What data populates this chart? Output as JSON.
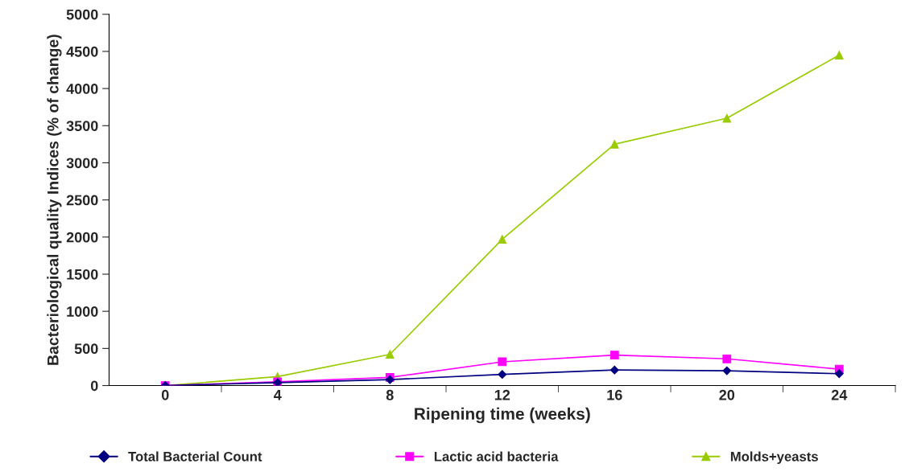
{
  "chart_data": {
    "type": "line",
    "xlabel": "Ripening time (weeks)",
    "ylabel": "Bacteriological quality Indices (% of change)",
    "categories": [
      "0",
      "4",
      "8",
      "12",
      "16",
      "20",
      "24"
    ],
    "series": [
      {
        "name": "Total Bacterial Count",
        "color": "#000080",
        "marker": "diamond",
        "values": [
          0,
          40,
          80,
          150,
          210,
          200,
          160
        ]
      },
      {
        "name": "Lactic acid bacteria",
        "color": "#ff00ff",
        "marker": "square",
        "values": [
          0,
          50,
          110,
          320,
          410,
          360,
          220
        ]
      },
      {
        "name": "Molds+yeasts",
        "color": "#99cc00",
        "marker": "triangle",
        "values": [
          0,
          120,
          420,
          1970,
          3250,
          3600,
          4450
        ]
      }
    ],
    "ylim": [
      0,
      5000
    ],
    "yticks": [
      0,
      500,
      1000,
      1500,
      2000,
      2500,
      3000,
      3500,
      4000,
      4500,
      5000
    ],
    "grid": false,
    "legend": "bottom"
  }
}
